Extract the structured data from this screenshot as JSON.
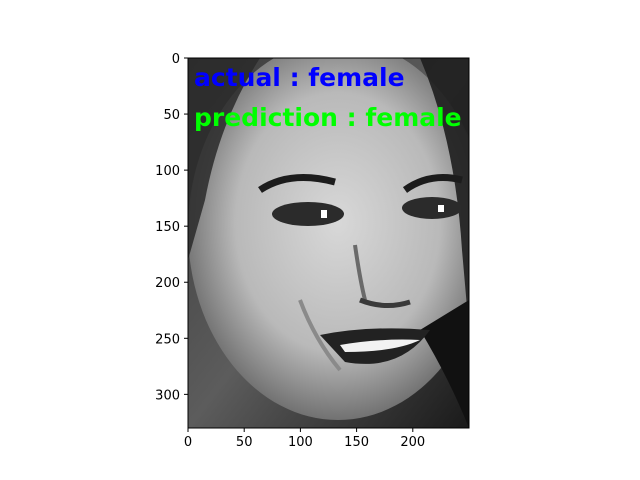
{
  "chart_data": {
    "type": "image",
    "image": {
      "content": "grayscale portrait of a smiling woman's face",
      "width": 250,
      "height": 330
    },
    "xlim": [
      0,
      250
    ],
    "ylim": [
      330,
      0
    ],
    "x_ticks": [
      0,
      50,
      100,
      150,
      200
    ],
    "y_ticks": [
      0,
      50,
      100,
      150,
      200,
      250,
      300
    ],
    "annotations": [
      {
        "text": "actual : female",
        "color": "#0000ff",
        "x": 6,
        "y": 17
      },
      {
        "text": "prediction : female",
        "color": "#00ff00",
        "x": 6,
        "y": 53
      }
    ],
    "grid": false
  }
}
